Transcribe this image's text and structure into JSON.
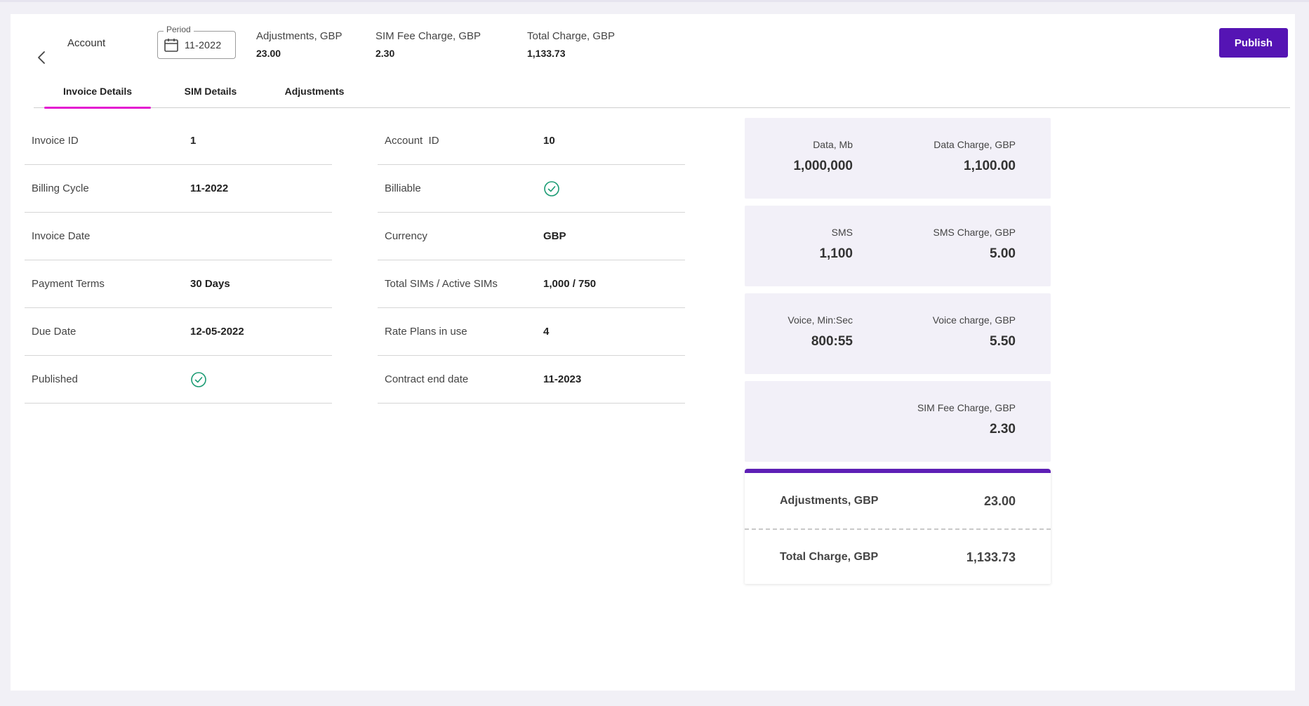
{
  "header": {
    "back_icon": "chevron-left-icon",
    "account_label": "Account",
    "period": {
      "legend": "Period",
      "value": "11-2022",
      "icon": "calendar-icon"
    },
    "summaries": [
      {
        "label": "Adjustments, GBP",
        "value": "23.00"
      },
      {
        "label": "SIM Fee Charge, GBP",
        "value": "2.30"
      },
      {
        "label": "Total Charge, GBP",
        "value": "1,133.73"
      }
    ],
    "publish_label": "Publish"
  },
  "tabs": [
    {
      "label": "Invoice Details",
      "active": true
    },
    {
      "label": "SIM Details",
      "active": false
    },
    {
      "label": "Adjustments",
      "active": false
    }
  ],
  "left_details": [
    {
      "label": "Invoice ID",
      "value": "1"
    },
    {
      "label": "Billing Cycle",
      "value": "11-2022"
    },
    {
      "label": "Invoice Date",
      "value": ""
    },
    {
      "label": "Payment Terms",
      "value": "30 Days"
    },
    {
      "label": "Due Date",
      "value": "12-05-2022"
    },
    {
      "label": "Published",
      "value": "",
      "icon": "check-circle-icon"
    }
  ],
  "middle_details": [
    {
      "label": "Account  ID",
      "value": "10"
    },
    {
      "label": "Billiable",
      "value": "",
      "icon": "check-circle-icon"
    },
    {
      "label": "Currency",
      "value": "GBP"
    },
    {
      "label": "Total SIMs / Active SIMs",
      "value": "1,000 / 750"
    },
    {
      "label": "Rate Plans in use",
      "value": "4"
    },
    {
      "label": "Contract end date",
      "value": "11-2023"
    }
  ],
  "stats": [
    {
      "left_label": "Data, Mb",
      "left_value": "1,000,000",
      "right_label": "Data Charge, GBP",
      "right_value": "1,100.00"
    },
    {
      "left_label": "SMS",
      "left_value": "1,100",
      "right_label": "SMS Charge, GBP",
      "right_value": "5.00"
    },
    {
      "left_label": "Voice, Min:Sec",
      "left_value": "800:55",
      "right_label": "Voice charge, GBP",
      "right_value": "5.50"
    },
    {
      "right_label": "SIM Fee Charge, GBP",
      "right_value": "2.30"
    }
  ],
  "totals": {
    "adjustments_label": "Adjustments, GBP",
    "adjustments_value": "23.00",
    "total_label": "Total Charge, GBP",
    "total_value": "1,133.73"
  },
  "colors": {
    "accent": "#5514b4",
    "tab_indicator": "#e41bd0",
    "check": "#1a9b73",
    "panel_bg": "#f2f0f8"
  }
}
